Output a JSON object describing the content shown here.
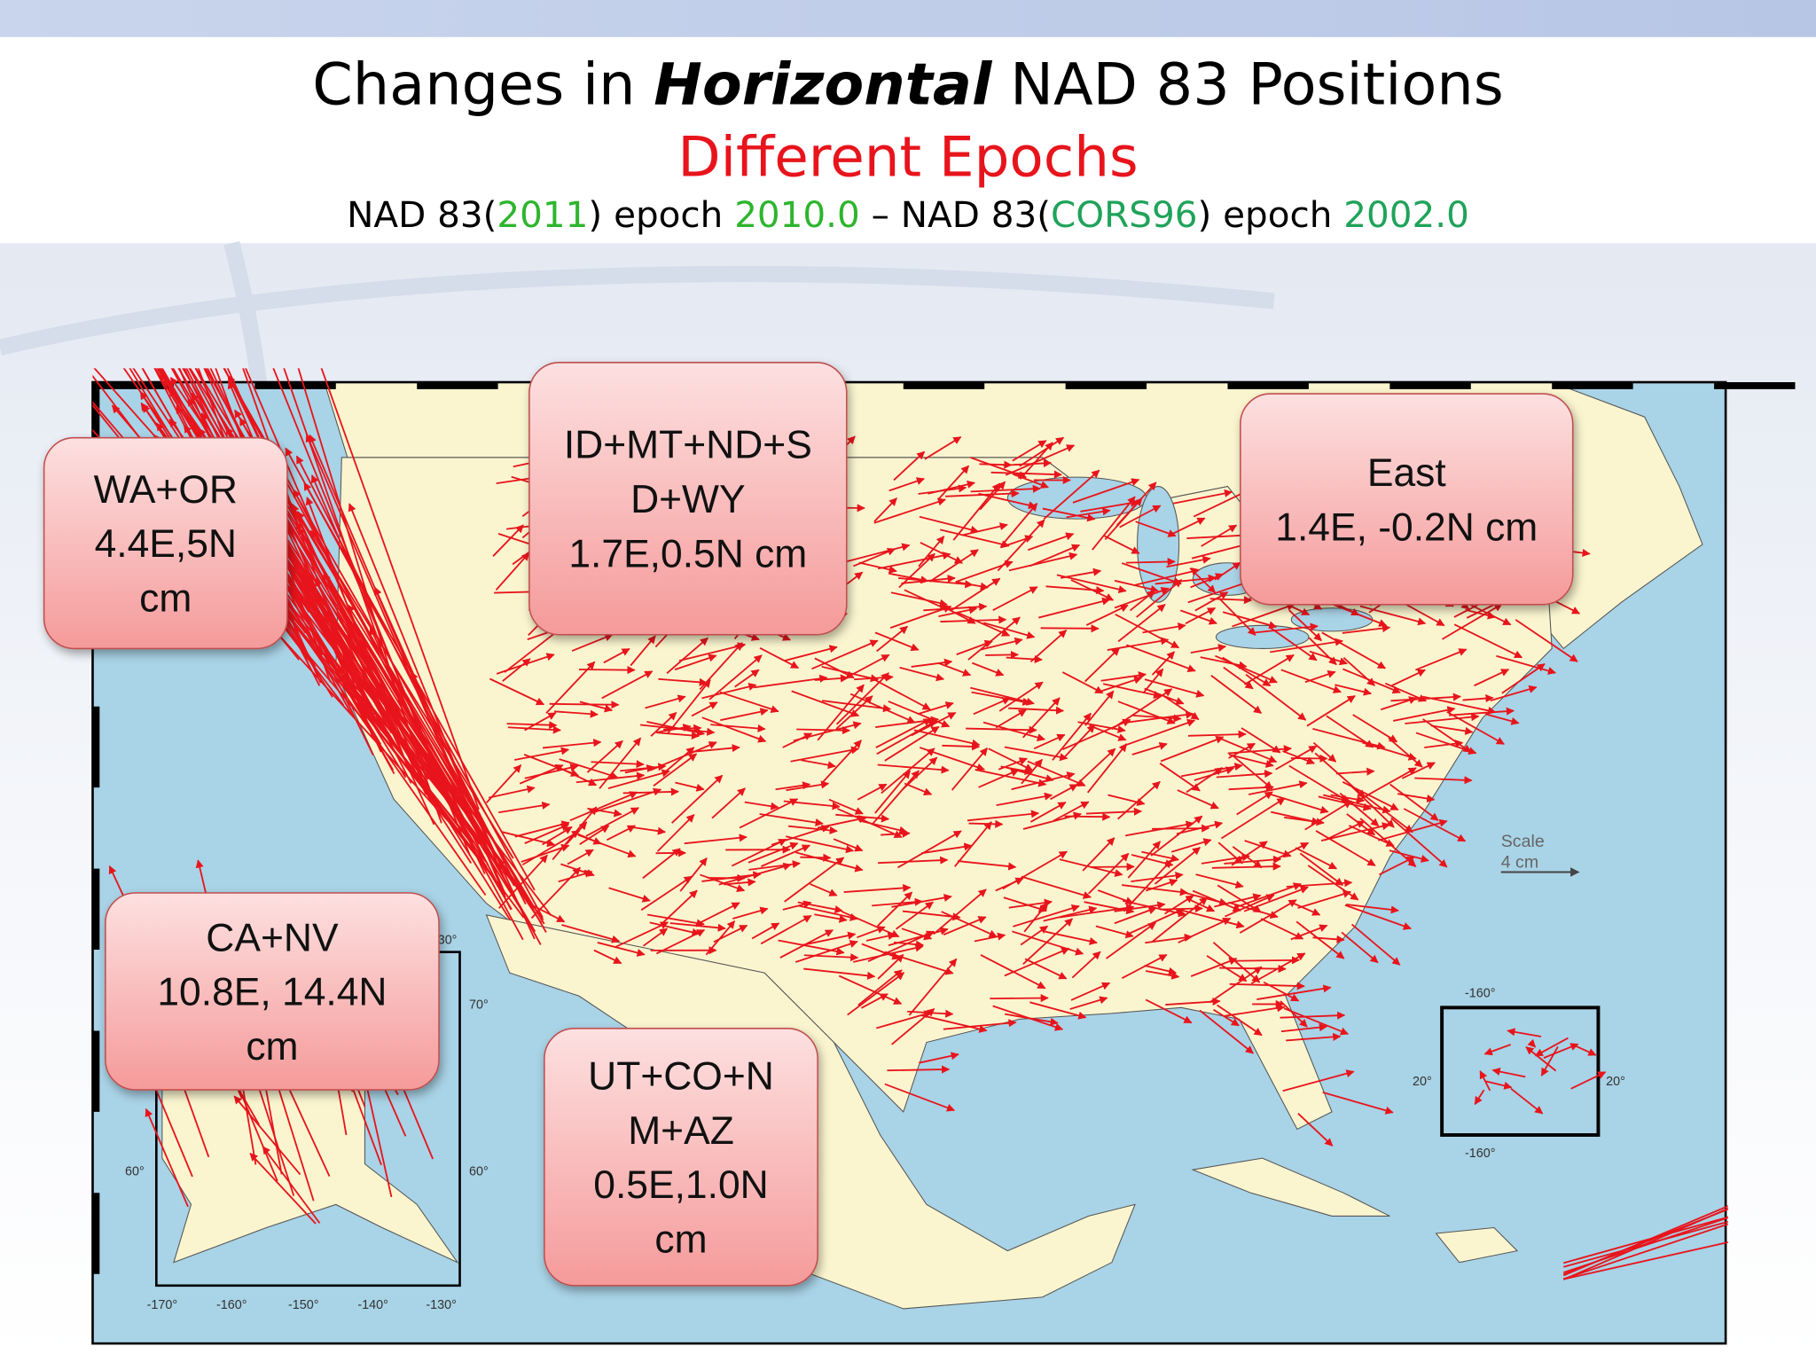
{
  "title": {
    "prefix": "Changes in ",
    "emphasis": "Horizontal",
    "suffix": " NAD 83 Positions"
  },
  "subtitle": "Different Epochs",
  "epochs": [
    "NAD 83(",
    "2011",
    ") epoch ",
    "2010.0",
    " – NAD 83(",
    "CORS96",
    ") epoch ",
    "2002.0"
  ],
  "callouts": [
    {
      "lines": [
        "WA+OR",
        "4.4E,5N",
        "cm"
      ]
    },
    {
      "lines": [
        "ID+MT+ND+S",
        "D+WY",
        "1.7E,0.5N cm"
      ]
    },
    {
      "lines": [
        "East",
        "1.4E, -0.2N cm"
      ]
    },
    {
      "lines": [
        "CA+NV",
        "10.8E, 14.4N",
        "cm"
      ]
    },
    {
      "lines": [
        "UT+CO+N",
        "M+AZ",
        "0.5E,1.0N",
        "cm"
      ]
    }
  ],
  "scale": {
    "title": "Scale",
    "length": "4 cm"
  },
  "alaska_inset": {
    "lat_labels": [
      "30°",
      "70°",
      "60°",
      "60°"
    ],
    "lon_labels": [
      "-170°",
      "-160°",
      "-150°",
      "-140°",
      "-130°"
    ]
  },
  "hawaii_inset": {
    "lon_labels": [
      "-160°",
      "-160°"
    ],
    "lat_labels": [
      "20°",
      "20°"
    ]
  }
}
